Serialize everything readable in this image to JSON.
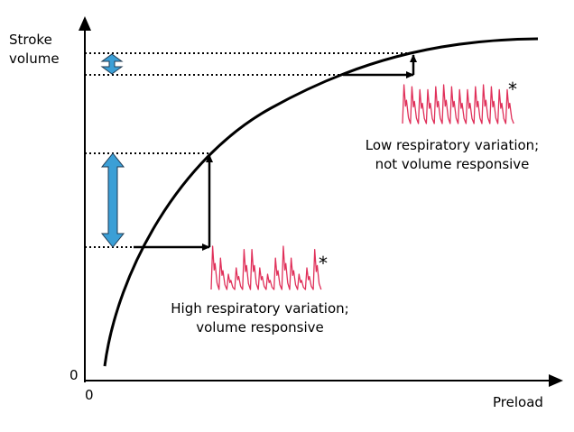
{
  "y_axis_label_line1": "Stroke",
  "y_axis_label_line2": "volume",
  "x_axis_label": "Preload",
  "origin_y_label": "0",
  "origin_x_label": "0",
  "high_variation_line1": "High respiratory variation;",
  "high_variation_line2": "volume responsive",
  "low_variation_line1": "Low respiratory variation;",
  "low_variation_line2": "not volume responsive",
  "waveform_marker": "*",
  "colors": {
    "curve": "#000000",
    "arrow_fill": "#3b9fd6",
    "waveform": "#e0305a"
  }
}
